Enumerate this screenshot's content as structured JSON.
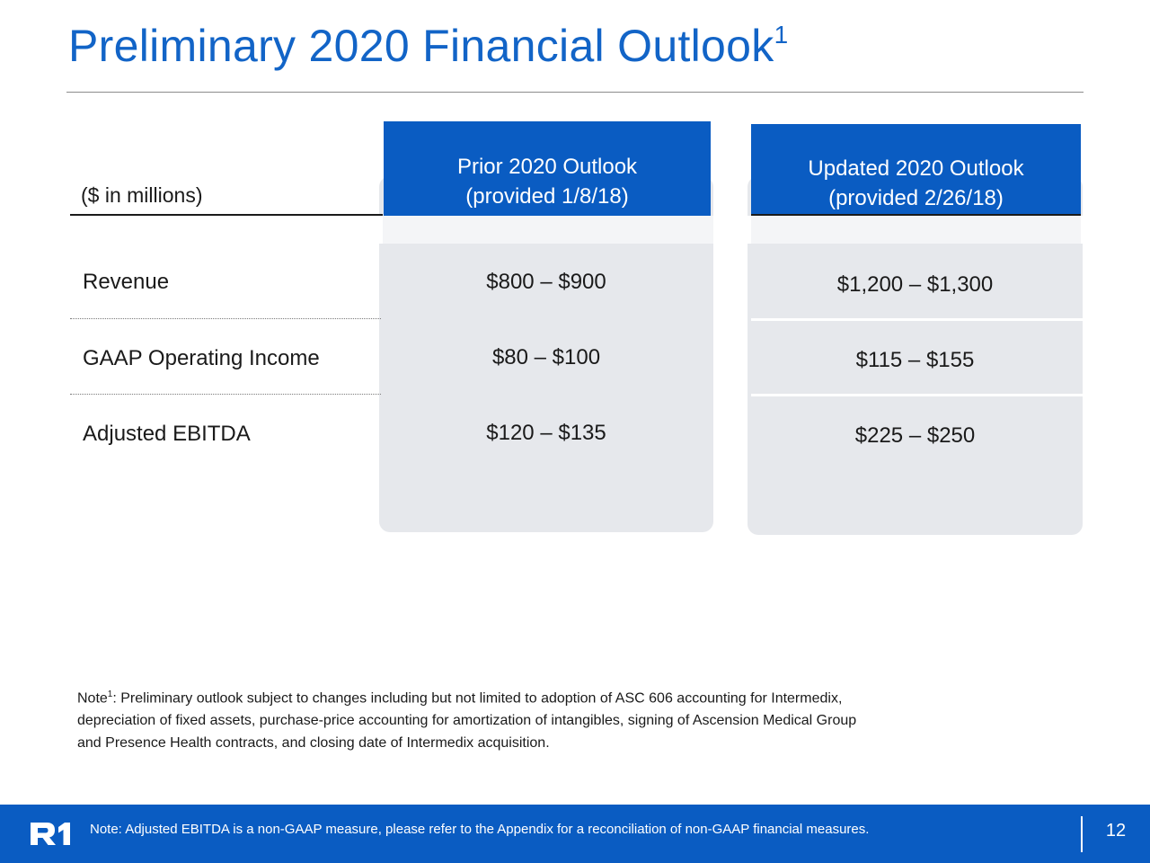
{
  "slide": {
    "title": "Preliminary 2020 Financial Outlook",
    "title_superscript": "1"
  },
  "table": {
    "units_label": "($ in millions)",
    "columns": [
      {
        "line1": "Prior 2020 Outlook",
        "line2": "(provided 1/8/18)"
      },
      {
        "line1": "Updated 2020 Outlook",
        "line2": "(provided 2/26/18)"
      }
    ],
    "rows": [
      {
        "label": "Revenue",
        "prior": "$800 – $900",
        "updated": "$1,200 – $1,300"
      },
      {
        "label": "GAAP Operating Income",
        "prior": "$80 – $100",
        "updated": "$115 – $155"
      },
      {
        "label": "Adjusted EBITDA",
        "prior": "$120 – $135",
        "updated": "$225 – $250"
      }
    ],
    "colors": {
      "header_blue": "#0a5cc2",
      "card_gray": "#e6e8ec",
      "title_blue": "#1264c7"
    }
  },
  "note": {
    "prefix": "Note",
    "superscript": "1",
    "line1": ": Preliminary outlook subject to changes including but not limited to adoption of ASC 606 accounting for Intermedix,",
    "line2": "depreciation of fixed assets, purchase-price accounting for amortization of intangibles, signing of Ascension Medical Group",
    "line3": "and Presence Health contracts, and closing date of Intermedix acquisition."
  },
  "footer": {
    "logo": "R1",
    "logo_icon": "r1-logo",
    "note": "Note:  Adjusted EBITDA is a non-GAAP measure, please refer to the Appendix for a reconciliation of non-GAAP financial measures.",
    "page_number": "12"
  }
}
